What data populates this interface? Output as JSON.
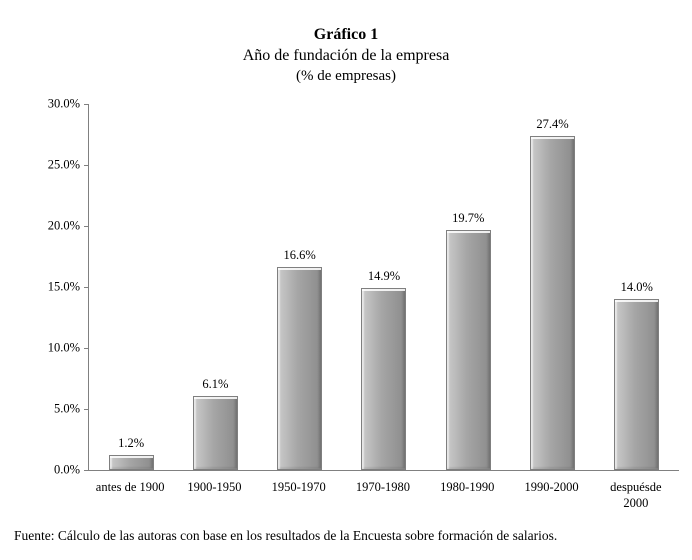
{
  "title": {
    "line1": "Gráfico 1",
    "line2": "Año de fundación de la empresa",
    "line3": "(% de empresas)"
  },
  "source": "Fuente: Cálculo de las autoras con base en los resultados de la Encuesta sobre formación de salarios.",
  "chart_data": {
    "type": "bar",
    "title": "Gráfico 1",
    "subtitle": "Año de fundación de la empresa",
    "unit_label": "(% de empresas)",
    "categories": [
      "antes de 1900",
      "1900-1950",
      "1950-1970",
      "1970-1980",
      "1980-1990",
      "1990-2000",
      "despuésde 2000"
    ],
    "values": [
      1.2,
      6.1,
      16.6,
      14.9,
      19.7,
      27.4,
      14.0
    ],
    "value_labels": [
      "1.2%",
      "6.1%",
      "16.6%",
      "14.9%",
      "19.7%",
      "27.4%",
      "14.0%"
    ],
    "y_ticks": [
      "0.0%",
      "5.0%",
      "10.0%",
      "15.0%",
      "20.0%",
      "25.0%",
      "30.0%"
    ],
    "ylim": [
      0,
      30
    ],
    "xlabel": "",
    "ylabel": "",
    "grid": false,
    "legend": "none",
    "source": "Fuente: Cálculo de las autoras con base en los resultados de la Encuesta sobre formación de salarios."
  },
  "colors": {
    "background": "#ffffff",
    "text": "#000000",
    "axis": "#808080",
    "bar_light": "#cbcbcb",
    "bar_mid": "#a6a6a6",
    "bar_dark": "#8c8c8c",
    "bar_border": "#7f7f7f"
  }
}
